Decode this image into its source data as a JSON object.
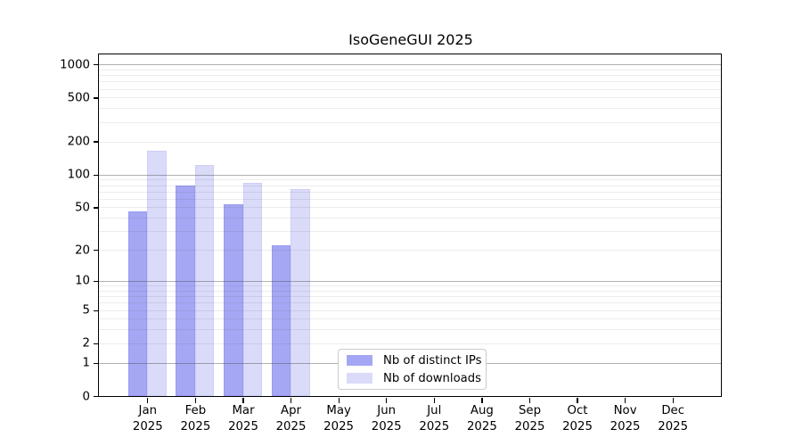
{
  "figure": {
    "title": "IsoGeneGUI 2025"
  },
  "legend": {
    "items": [
      {
        "label": "Nb of distinct IPs",
        "color": "#a5a7f4"
      },
      {
        "label": "Nb of downloads",
        "color": "#dadbf9"
      }
    ]
  },
  "chart_data": {
    "type": "bar",
    "title": "IsoGeneGUI 2025",
    "y_scale": "log1p",
    "categories": [
      {
        "month": "Jan",
        "year": "2025"
      },
      {
        "month": "Feb",
        "year": "2025"
      },
      {
        "month": "Mar",
        "year": "2025"
      },
      {
        "month": "Apr",
        "year": "2025"
      },
      {
        "month": "May",
        "year": "2025"
      },
      {
        "month": "Jun",
        "year": "2025"
      },
      {
        "month": "Jul",
        "year": "2025"
      },
      {
        "month": "Aug",
        "year": "2025"
      },
      {
        "month": "Sep",
        "year": "2025"
      },
      {
        "month": "Oct",
        "year": "2025"
      },
      {
        "month": "Nov",
        "year": "2025"
      },
      {
        "month": "Dec",
        "year": "2025"
      }
    ],
    "series": [
      {
        "name": "Nb of distinct IPs",
        "color": "#a5a7f4",
        "edge_color": "#989bf0",
        "values": [
          46,
          80,
          53,
          22,
          null,
          null,
          null,
          null,
          null,
          null,
          null,
          null
        ]
      },
      {
        "name": "Nb of downloads",
        "color": "#dadbf9",
        "edge_color": "#cdcff6",
        "values": [
          165,
          122,
          84,
          74,
          null,
          null,
          null,
          null,
          null,
          null,
          null,
          null
        ]
      }
    ],
    "y_ticks": [
      0,
      1,
      2,
      5,
      10,
      20,
      50,
      100,
      200,
      500,
      1000
    ],
    "ylim": [
      0,
      1230
    ],
    "grid": {
      "major": [
        1,
        10,
        100,
        1000
      ],
      "minor_per_decade": [
        2,
        3,
        4,
        5,
        6,
        7,
        8,
        9
      ]
    },
    "legend_position": "lower-center",
    "xlabel": "",
    "ylabel": ""
  }
}
